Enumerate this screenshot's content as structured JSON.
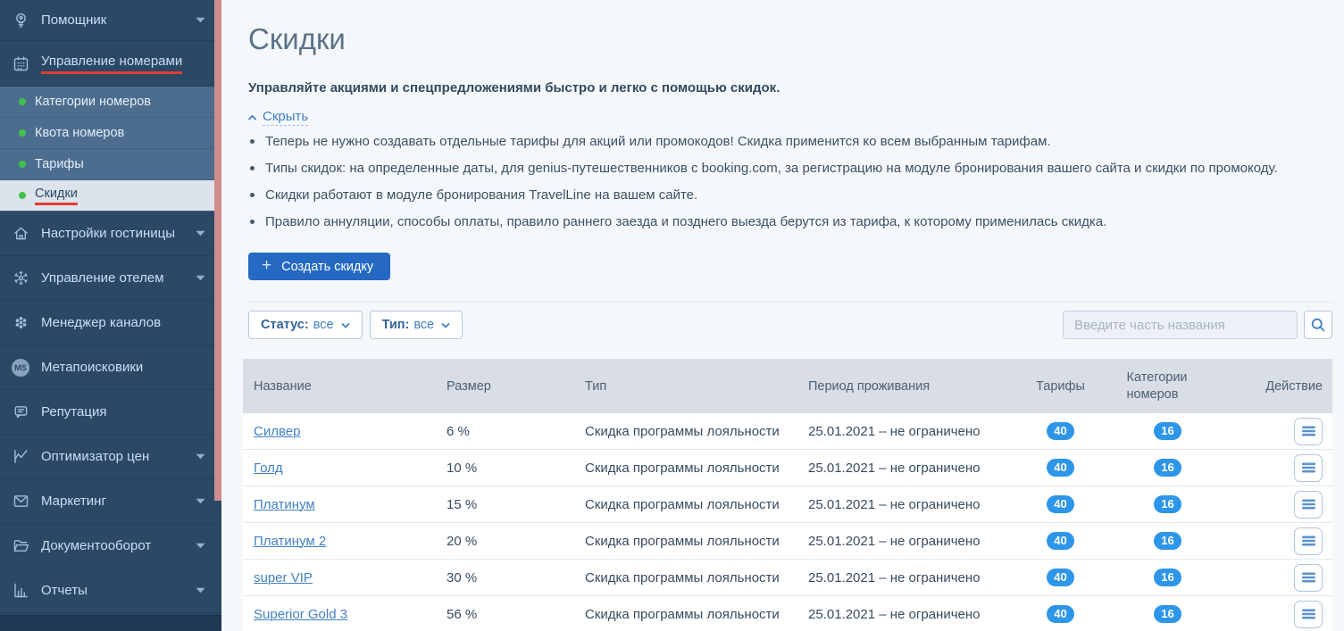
{
  "colors": {
    "sidebar_bg": "#2b4864",
    "submenu_bg": "#4d6d8e",
    "active_item_bg": "#dde3eb",
    "green_dot": "#3fc24c",
    "red_mark": "#e13b35",
    "scrollbar_pink": "#ce8d8d",
    "accent_blue": "#2569c2",
    "badge_blue": "#2d96e9",
    "link_blue": "#4080c4"
  },
  "sidebar": {
    "ms_badge": "MS",
    "items": [
      {
        "id": "assistant",
        "label": "Помощник",
        "icon": "lightbulb-icon",
        "expandable": true
      },
      {
        "id": "room-management",
        "label": "Управление номерами",
        "icon": "calendar-icon",
        "expandable": false,
        "red_underline": true,
        "children": [
          {
            "label": "Категории номеров",
            "active": false
          },
          {
            "label": "Квота номеров",
            "active": false
          },
          {
            "label": "Тарифы",
            "active": false
          },
          {
            "label": "Скидки",
            "active": true
          }
        ]
      },
      {
        "id": "hotel-settings",
        "label": "Настройки гостиницы",
        "icon": "house-icon",
        "expandable": true
      },
      {
        "id": "hotel-management",
        "label": "Управление отелем",
        "icon": "cog-icon",
        "expandable": true
      },
      {
        "id": "channel-manager",
        "label": "Менеджер каналов",
        "icon": "channels-icon",
        "expandable": false
      },
      {
        "id": "metasearch",
        "label": "Метапоисковики",
        "icon": "ms-badge-icon",
        "expandable": false
      },
      {
        "id": "reputation",
        "label": "Репутация",
        "icon": "chat-icon",
        "expandable": false
      },
      {
        "id": "price-optimizer",
        "label": "Оптимизатор цен",
        "icon": "chart-line-icon",
        "expandable": true
      },
      {
        "id": "marketing",
        "label": "Маркетинг",
        "icon": "envelope-icon",
        "expandable": true
      },
      {
        "id": "documents",
        "label": "Документооборот",
        "icon": "folder-icon",
        "expandable": true
      },
      {
        "id": "reports",
        "label": "Отчеты",
        "icon": "bar-chart-icon",
        "expandable": true
      }
    ]
  },
  "page": {
    "title": "Скидки",
    "intro_bold": "Управляйте акциями и спецпредложениями быстро и легко с помощью скидок.",
    "hide_link": "Скрыть",
    "bullets": [
      "Теперь не нужно создавать отдельные тарифы для акций или промокодов! Скидка применится ко всем выбранным тарифам.",
      "Типы скидок: на определенные даты, для genius-путешественников с booking.com, за регистрацию на модуле бронирования вашего сайта и скидки по промокоду.",
      "Скидки работают в модуле бронирования TravelLine на вашем сайте.",
      "Правило аннуляции, способы оплаты, правило раннего заезда и позднего выезда берутся из тарифа, к которому применилась скидка."
    ],
    "create_button": "Создать скидку",
    "plus_sign": "+"
  },
  "filters": {
    "status_label": "Статус:",
    "status_value": "все",
    "type_label": "Тип:",
    "type_value": "все",
    "search_placeholder": "Введите часть названия"
  },
  "table": {
    "headers": [
      "Название",
      "Размер",
      "Тип",
      "Период проживания",
      "Тарифы",
      "Категории номеров",
      "Действие"
    ],
    "rows": [
      {
        "name": "Силвер",
        "size": "6 %",
        "type": "Скидка программы лояльности",
        "period": "25.01.2021 – не ограничено",
        "tariffs": "40",
        "categories": "16"
      },
      {
        "name": "Голд",
        "size": "10 %",
        "type": "Скидка программы лояльности",
        "period": "25.01.2021 – не ограничено",
        "tariffs": "40",
        "categories": "16"
      },
      {
        "name": "Платинум",
        "size": "15 %",
        "type": "Скидка программы лояльности",
        "period": "25.01.2021 – не ограничено",
        "tariffs": "40",
        "categories": "16"
      },
      {
        "name": "Платинум 2",
        "size": "20 %",
        "type": "Скидка программы лояльности",
        "period": "25.01.2021 – не ограничено",
        "tariffs": "40",
        "categories": "16"
      },
      {
        "name": "super VIP",
        "size": "30 %",
        "type": "Скидка программы лояльности",
        "period": "25.01.2021 – не ограничено",
        "tariffs": "40",
        "categories": "16"
      },
      {
        "name": "Superior Gold 3",
        "size": "56 %",
        "type": "Скидка программы лояльности",
        "period": "25.01.2021 – не ограничено",
        "tariffs": "40",
        "categories": "16"
      }
    ]
  }
}
